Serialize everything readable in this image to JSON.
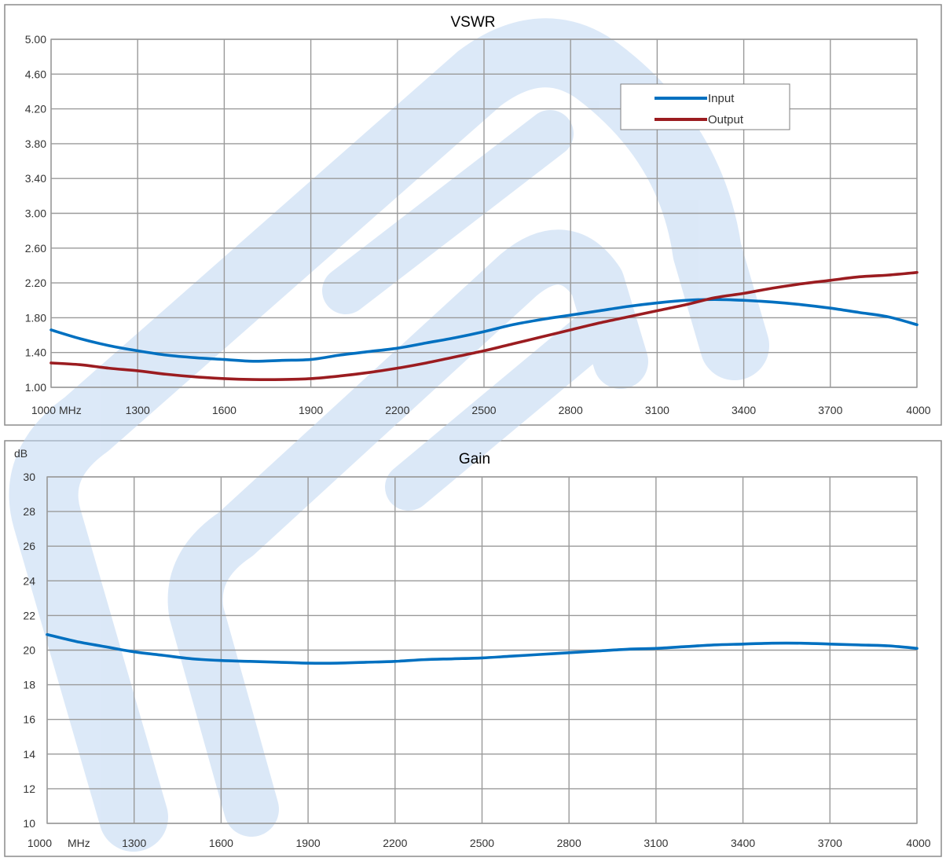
{
  "colors": {
    "input": "#0070C0",
    "output": "#9B1C20",
    "watermark": "#BFD7F2"
  },
  "watermark": {
    "name": "logo-watermark"
  },
  "chart_data": [
    {
      "type": "line",
      "title": "VSWR",
      "ylabel": "",
      "x_unit_label": "MHz",
      "xlim": [
        1000,
        4000
      ],
      "ylim": [
        1.0,
        5.0
      ],
      "xticks": [
        1000,
        1300,
        1600,
        1900,
        2200,
        2500,
        2800,
        3100,
        3400,
        3700,
        4000
      ],
      "xtick_labels": [
        "1000",
        "1300",
        "1600",
        "1900",
        "2200",
        "2500",
        "2800",
        "3100",
        "3400",
        "3700",
        "4000"
      ],
      "yticks": [
        1.0,
        1.4,
        1.8,
        2.2,
        2.6,
        3.0,
        3.4,
        3.8,
        4.2,
        4.6,
        5.0
      ],
      "ytick_labels": [
        "1.00",
        "1.40",
        "1.80",
        "2.20",
        "2.60",
        "3.00",
        "3.40",
        "3.80",
        "4.20",
        "4.60",
        "5.00"
      ],
      "grid": true,
      "legend": "top-right",
      "series": [
        {
          "name": "Input",
          "color_key": "input",
          "x": [
            1000,
            1100,
            1200,
            1300,
            1400,
            1500,
            1600,
            1700,
            1800,
            1900,
            2000,
            2100,
            2200,
            2300,
            2400,
            2500,
            2600,
            2700,
            2800,
            2900,
            3000,
            3100,
            3200,
            3300,
            3400,
            3500,
            3600,
            3700,
            3800,
            3900,
            4000
          ],
          "values": [
            1.66,
            1.56,
            1.48,
            1.42,
            1.37,
            1.34,
            1.32,
            1.3,
            1.31,
            1.32,
            1.37,
            1.41,
            1.45,
            1.51,
            1.57,
            1.64,
            1.72,
            1.78,
            1.83,
            1.88,
            1.93,
            1.97,
            2.0,
            2.01,
            2.0,
            1.98,
            1.95,
            1.91,
            1.86,
            1.81,
            1.72
          ]
        },
        {
          "name": "Output",
          "color_key": "output",
          "x": [
            1000,
            1100,
            1200,
            1300,
            1400,
            1500,
            1600,
            1700,
            1800,
            1900,
            2000,
            2100,
            2200,
            2300,
            2400,
            2500,
            2600,
            2700,
            2800,
            2900,
            3000,
            3100,
            3200,
            3300,
            3400,
            3500,
            3600,
            3700,
            3800,
            3900,
            4000
          ],
          "values": [
            1.28,
            1.26,
            1.22,
            1.19,
            1.15,
            1.12,
            1.1,
            1.09,
            1.09,
            1.1,
            1.13,
            1.17,
            1.22,
            1.28,
            1.35,
            1.42,
            1.5,
            1.58,
            1.66,
            1.74,
            1.81,
            1.88,
            1.95,
            2.03,
            2.08,
            2.14,
            2.19,
            2.23,
            2.27,
            2.29,
            2.32
          ]
        }
      ]
    },
    {
      "type": "line",
      "title": "Gain",
      "ylabel": "dB",
      "x_unit_label": "MHz",
      "xlim": [
        1000,
        4000
      ],
      "ylim": [
        10,
        30
      ],
      "xticks": [
        1000,
        1300,
        1600,
        1900,
        2200,
        2500,
        2800,
        3100,
        3400,
        3700,
        4000
      ],
      "xtick_labels": [
        "1000",
        "1300",
        "1600",
        "1900",
        "2200",
        "2500",
        "2800",
        "3100",
        "3400",
        "3700",
        "4000"
      ],
      "yticks": [
        10,
        12,
        14,
        16,
        18,
        20,
        22,
        24,
        26,
        28,
        30
      ],
      "ytick_labels": [
        "10",
        "12",
        "14",
        "16",
        "18",
        "20",
        "22",
        "24",
        "26",
        "28",
        "30"
      ],
      "grid": true,
      "legend": "none",
      "series": [
        {
          "name": "",
          "color_key": "input",
          "x": [
            1000,
            1100,
            1200,
            1300,
            1400,
            1500,
            1600,
            1700,
            1800,
            1900,
            2000,
            2100,
            2200,
            2300,
            2400,
            2500,
            2600,
            2700,
            2800,
            2900,
            3000,
            3100,
            3200,
            3300,
            3400,
            3500,
            3600,
            3700,
            3800,
            3900,
            4000
          ],
          "values": [
            20.9,
            20.5,
            20.2,
            19.9,
            19.7,
            19.5,
            19.4,
            19.35,
            19.3,
            19.25,
            19.25,
            19.3,
            19.35,
            19.45,
            19.5,
            19.55,
            19.65,
            19.75,
            19.85,
            19.95,
            20.05,
            20.1,
            20.2,
            20.3,
            20.35,
            20.4,
            20.4,
            20.35,
            20.3,
            20.25,
            20.1
          ]
        }
      ]
    }
  ]
}
